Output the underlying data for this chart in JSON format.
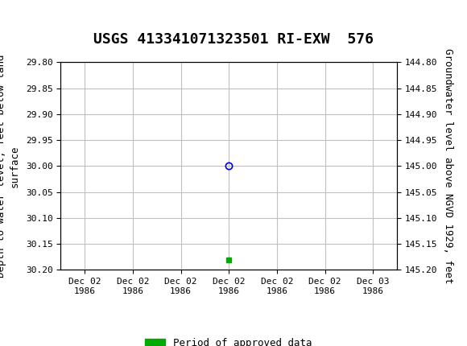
{
  "title": "USGS 413341071323501 RI-EXW  576",
  "header_color": "#1a6b3c",
  "bg_color": "#ffffff",
  "plot_bg_color": "#ffffff",
  "grid_color": "#c0c0c0",
  "left_ylabel": "Depth to water level, feet below land\nsurface",
  "right_ylabel": "Groundwater level above NGVD 1929, feet",
  "ylim_left": [
    29.8,
    30.2
  ],
  "ylim_right": [
    144.8,
    145.2
  ],
  "yticks_left": [
    29.8,
    29.85,
    29.9,
    29.95,
    30.0,
    30.05,
    30.1,
    30.15,
    30.2
  ],
  "yticks_right": [
    144.8,
    144.85,
    144.9,
    144.95,
    145.0,
    145.05,
    145.1,
    145.15,
    145.2
  ],
  "point_x": 3.5,
  "point_y": 30.0,
  "point_color": "#0000cc",
  "point_marker": "o",
  "point_marker_size": 6,
  "green_bar_x": 3.5,
  "green_bar_y": 30.18,
  "green_bar_color": "#00aa00",
  "green_bar_marker": "s",
  "green_bar_size": 5,
  "xtick_labels": [
    "Dec 02\n1986",
    "Dec 02\n1986",
    "Dec 02\n1986",
    "Dec 02\n1986",
    "Dec 02\n1986",
    "Dec 02\n1986",
    "Dec 03\n1986"
  ],
  "xlim": [
    0,
    7
  ],
  "legend_label": "Period of approved data",
  "legend_color": "#00aa00",
  "font_family": "monospace",
  "title_fontsize": 13,
  "axis_label_fontsize": 9,
  "tick_fontsize": 8
}
